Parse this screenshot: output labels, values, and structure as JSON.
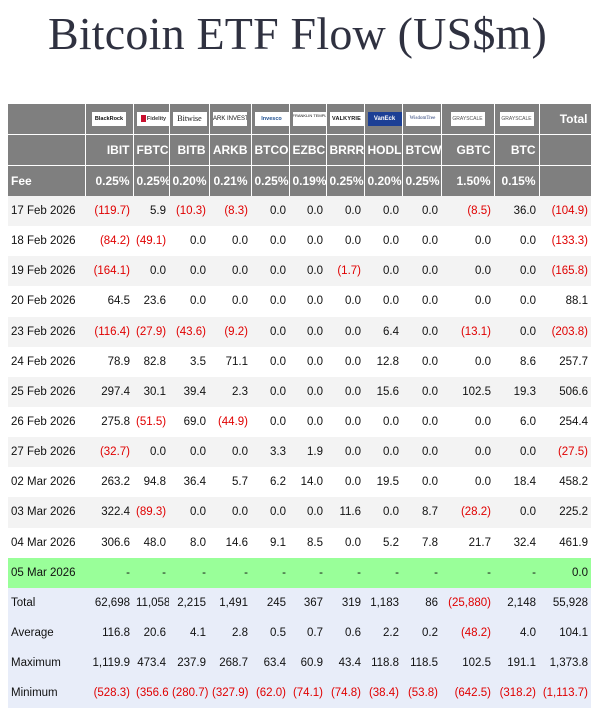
{
  "title": "Bitcoin ETF Flow (US$m)",
  "issuers": [
    {
      "id": "blackrock",
      "logo_text": "BlackRock"
    },
    {
      "id": "fidelity",
      "logo_text": "Fidelity"
    },
    {
      "id": "bitwise",
      "logo_text": "Bitwise"
    },
    {
      "id": "ark",
      "logo_text": "ARK INVEST"
    },
    {
      "id": "invesco",
      "logo_text": "Invesco"
    },
    {
      "id": "franklin",
      "logo_text": "FRANKLIN TEMPLETON"
    },
    {
      "id": "valkyrie",
      "logo_text": "VALKYRIE"
    },
    {
      "id": "vaneck",
      "logo_text": "VanEck"
    },
    {
      "id": "wisdomtree",
      "logo_text": "WisdomTree"
    },
    {
      "id": "grayscale1",
      "logo_text": "GRAYSCALE"
    },
    {
      "id": "grayscale2",
      "logo_text": "GRAYSCALE"
    }
  ],
  "total_label": "Total",
  "tickers": [
    "IBIT",
    "FBTC",
    "BITB",
    "ARKB",
    "BTCO",
    "EZBC",
    "BRRR",
    "HODL",
    "BTCW",
    "GBTC",
    "BTC"
  ],
  "fee_label": "Fee",
  "fees": [
    "0.25%",
    "0.25%",
    "0.20%",
    "0.21%",
    "0.25%",
    "0.19%",
    "0.25%",
    "0.20%",
    "0.25%",
    "1.50%",
    "0.15%"
  ],
  "rows": [
    {
      "date": "17 Feb 2026",
      "values": [
        "(119.7)",
        "5.9",
        "(10.3)",
        "(8.3)",
        "0.0",
        "0.0",
        "0.0",
        "0.0",
        "0.0",
        "(8.5)",
        "36.0"
      ],
      "total": "(104.9)"
    },
    {
      "date": "18 Feb 2026",
      "values": [
        "(84.2)",
        "(49.1)",
        "0.0",
        "0.0",
        "0.0",
        "0.0",
        "0.0",
        "0.0",
        "0.0",
        "0.0",
        "0.0"
      ],
      "total": "(133.3)"
    },
    {
      "date": "19 Feb 2026",
      "values": [
        "(164.1)",
        "0.0",
        "0.0",
        "0.0",
        "0.0",
        "0.0",
        "(1.7)",
        "0.0",
        "0.0",
        "0.0",
        "0.0"
      ],
      "total": "(165.8)"
    },
    {
      "date": "20 Feb 2026",
      "values": [
        "64.5",
        "23.6",
        "0.0",
        "0.0",
        "0.0",
        "0.0",
        "0.0",
        "0.0",
        "0.0",
        "0.0",
        "0.0"
      ],
      "total": "88.1"
    },
    {
      "date": "23 Feb 2026",
      "values": [
        "(116.4)",
        "(27.9)",
        "(43.6)",
        "(9.2)",
        "0.0",
        "0.0",
        "0.0",
        "6.4",
        "0.0",
        "(13.1)",
        "0.0"
      ],
      "total": "(203.8)"
    },
    {
      "date": "24 Feb 2026",
      "values": [
        "78.9",
        "82.8",
        "3.5",
        "71.1",
        "0.0",
        "0.0",
        "0.0",
        "12.8",
        "0.0",
        "0.0",
        "8.6"
      ],
      "total": "257.7"
    },
    {
      "date": "25 Feb 2026",
      "values": [
        "297.4",
        "30.1",
        "39.4",
        "2.3",
        "0.0",
        "0.0",
        "0.0",
        "15.6",
        "0.0",
        "102.5",
        "19.3"
      ],
      "total": "506.6"
    },
    {
      "date": "26 Feb 2026",
      "values": [
        "275.8",
        "(51.5)",
        "69.0",
        "(44.9)",
        "0.0",
        "0.0",
        "0.0",
        "0.0",
        "0.0",
        "0.0",
        "6.0"
      ],
      "total": "254.4"
    },
    {
      "date": "27 Feb 2026",
      "values": [
        "(32.7)",
        "0.0",
        "0.0",
        "0.0",
        "3.3",
        "1.9",
        "0.0",
        "0.0",
        "0.0",
        "0.0",
        "0.0"
      ],
      "total": "(27.5)"
    },
    {
      "date": "02 Mar 2026",
      "values": [
        "263.2",
        "94.8",
        "36.4",
        "5.7",
        "6.2",
        "14.0",
        "0.0",
        "19.5",
        "0.0",
        "0.0",
        "18.4"
      ],
      "total": "458.2"
    },
    {
      "date": "03 Mar 2026",
      "values": [
        "322.4",
        "(89.3)",
        "0.0",
        "0.0",
        "0.0",
        "0.0",
        "11.6",
        "0.0",
        "8.7",
        "(28.2)",
        "0.0"
      ],
      "total": "225.2"
    },
    {
      "date": "04 Mar 2026",
      "values": [
        "306.6",
        "48.0",
        "8.0",
        "14.6",
        "9.1",
        "8.5",
        "0.0",
        "5.2",
        "7.8",
        "21.7",
        "32.4"
      ],
      "total": "461.9"
    },
    {
      "date": "05 Mar 2026",
      "values": [
        "-",
        "-",
        "-",
        "-",
        "-",
        "-",
        "-",
        "-",
        "-",
        "-",
        "-"
      ],
      "total": "0.0",
      "highlight": true
    }
  ],
  "summary": [
    {
      "label": "Total",
      "values": [
        "62,698",
        "11,058",
        "2,215",
        "1,491",
        "245",
        "367",
        "319",
        "1,183",
        "86",
        "(25,880)",
        "2,148"
      ],
      "total": "55,928"
    },
    {
      "label": "Average",
      "values": [
        "116.8",
        "20.6",
        "4.1",
        "2.8",
        "0.5",
        "0.7",
        "0.6",
        "2.2",
        "0.2",
        "(48.2)",
        "4.0"
      ],
      "total": "104.1"
    },
    {
      "label": "Maximum",
      "values": [
        "1,119.9",
        "473.4",
        "237.9",
        "268.7",
        "63.4",
        "60.9",
        "43.4",
        "118.8",
        "118.5",
        "102.5",
        "191.1"
      ],
      "total": "1,373.8"
    },
    {
      "label": "Minimum",
      "values": [
        "(528.3)",
        "(356.6)",
        "(280.7)",
        "(327.9)",
        "(62.0)",
        "(74.1)",
        "(74.8)",
        "(38.4)",
        "(53.8)",
        "(642.5)",
        "(318.2)"
      ],
      "total": "(1,113.7)"
    }
  ],
  "colors": {
    "header_bg": "#7f7f7f",
    "negative": "#e00000",
    "highlight_row": "#99ff99",
    "summary_bg": "#e8edf9",
    "title": "#2f3140"
  }
}
